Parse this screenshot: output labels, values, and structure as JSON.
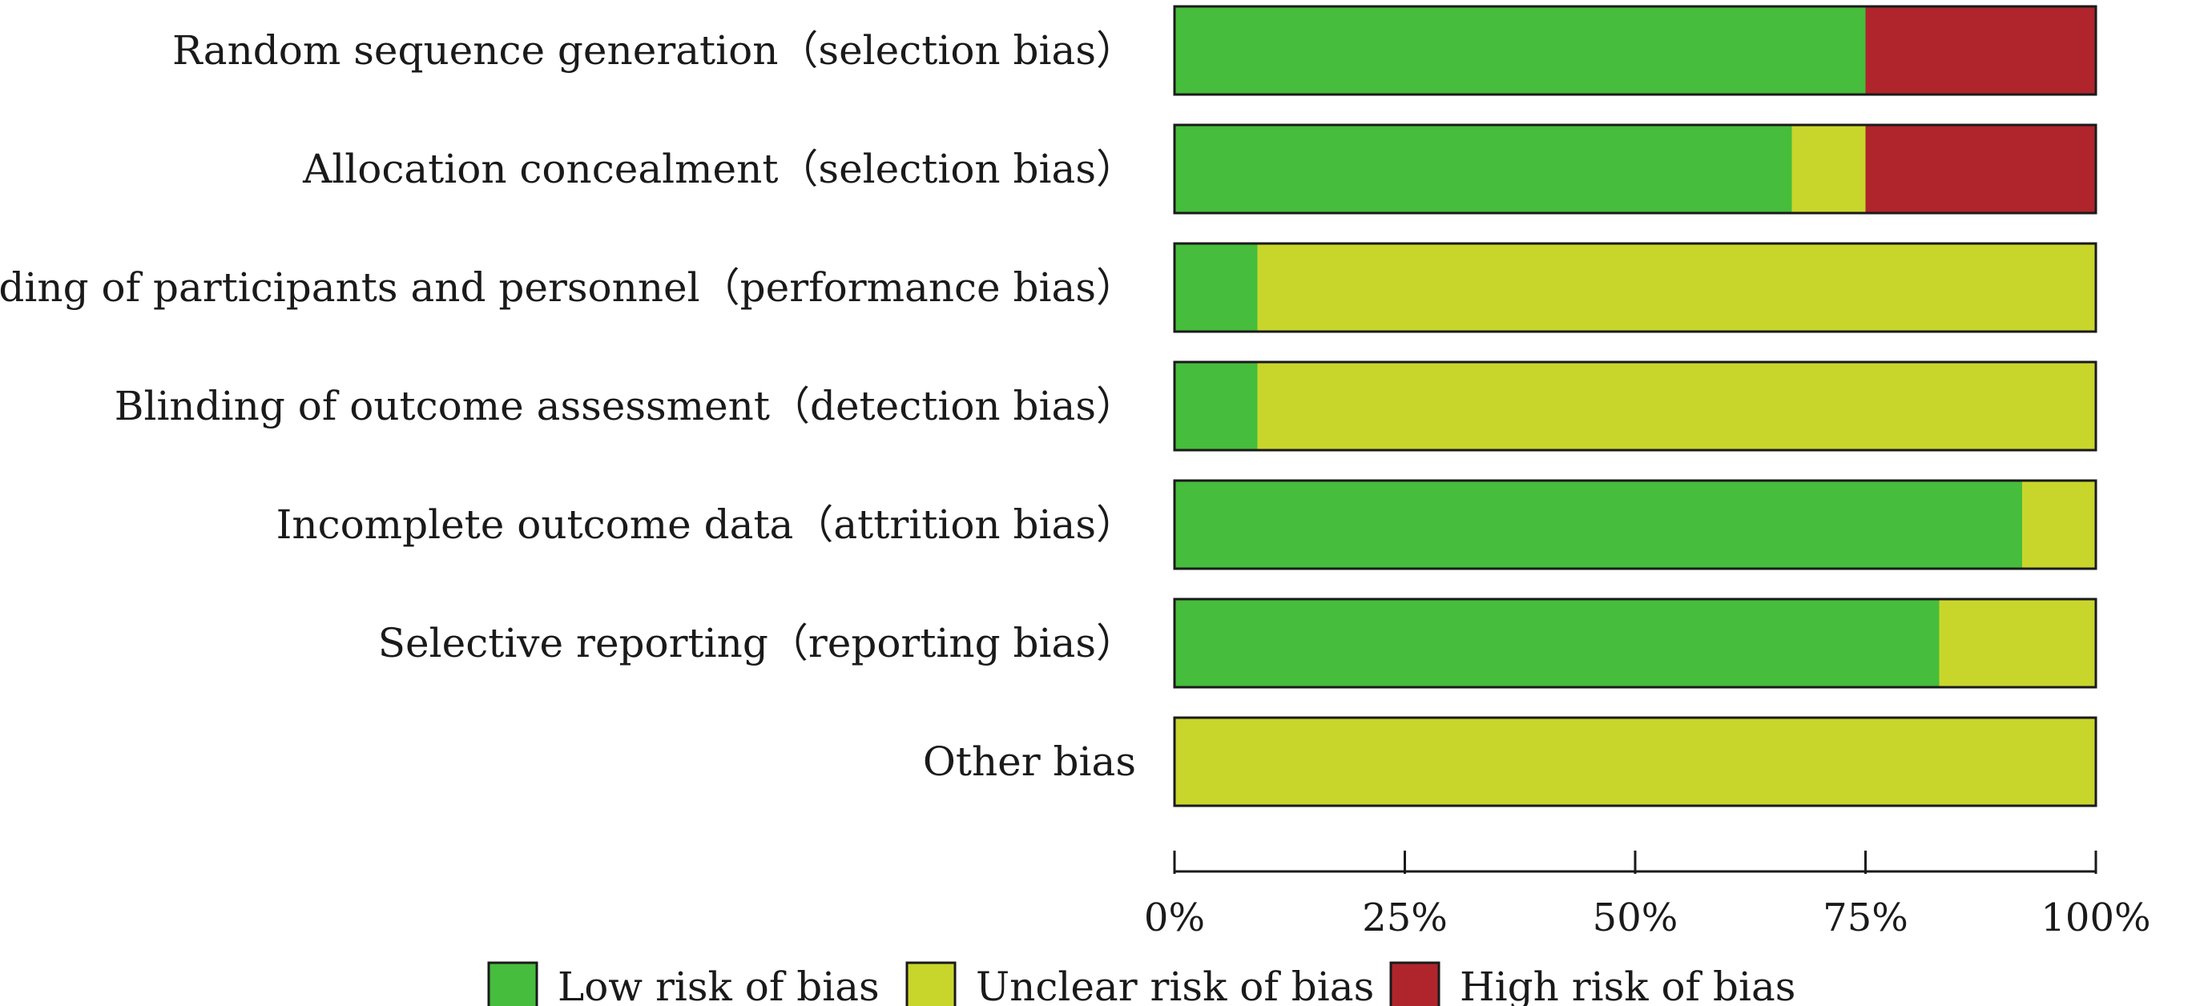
{
  "chart_data": {
    "type": "bar",
    "orientation": "horizontal",
    "stacked": true,
    "categories": [
      "Random sequence generation（selection bias）",
      "Allocation concealment（selection bias）",
      "Blinding of participants and personnel（performance bias）",
      "Blinding of outcome assessment（detection bias）",
      "Incomplete outcome data（attrition bias）",
      "Selective reporting（reporting bias）",
      "Other bias"
    ],
    "series": [
      {
        "name": "Low risk of bias",
        "color": "#46bd3c",
        "values": [
          75,
          67,
          9,
          9,
          92,
          83,
          0
        ]
      },
      {
        "name": "Unclear risk of bias",
        "color": "#c8d62b",
        "values": [
          0,
          8,
          91,
          91,
          8,
          17,
          100
        ]
      },
      {
        "name": "High risk of bias",
        "color": "#b0252c",
        "values": [
          25,
          25,
          0,
          0,
          0,
          0,
          0
        ]
      }
    ],
    "xlim": [
      0,
      100
    ],
    "x_ticks": [
      "0%",
      "25%",
      "50%",
      "75%",
      "100%"
    ],
    "legend_position": "bottom",
    "grid": false
  }
}
